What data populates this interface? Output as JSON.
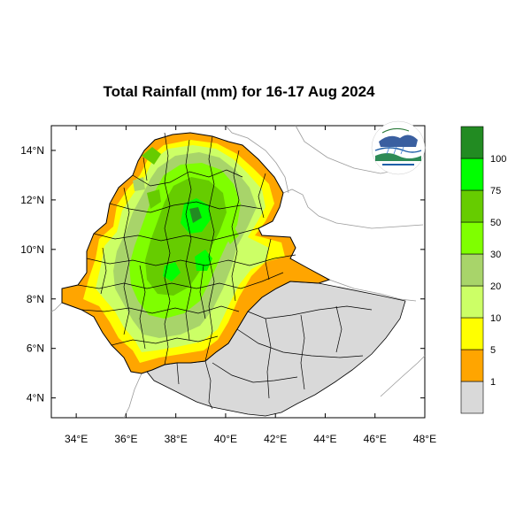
{
  "title": "Total Rainfall (mm) for 16-17 Aug 2024",
  "map": {
    "lon_range": [
      33,
      48
    ],
    "lat_range": [
      3.2,
      15
    ],
    "x_ticks": [
      {
        "value": 34,
        "label": "34°E"
      },
      {
        "value": 36,
        "label": "36°E"
      },
      {
        "value": 38,
        "label": "38°E"
      },
      {
        "value": 40,
        "label": "40°E"
      },
      {
        "value": 42,
        "label": "42°E"
      },
      {
        "value": 44,
        "label": "44°E"
      },
      {
        "value": 46,
        "label": "46°E"
      },
      {
        "value": 48,
        "label": "48°E"
      }
    ],
    "y_ticks": [
      {
        "value": 4,
        "label": "4°N"
      },
      {
        "value": 6,
        "label": "6°N"
      },
      {
        "value": 8,
        "label": "8°N"
      },
      {
        "value": 10,
        "label": "10°N"
      },
      {
        "value": 12,
        "label": "12°N"
      },
      {
        "value": 14,
        "label": "14°N"
      }
    ]
  },
  "colorbar": {
    "colors": [
      "#d9d9d9",
      "#ffa500",
      "#ffff00",
      "#ccff66",
      "#a8d46a",
      "#7fff00",
      "#66cc00",
      "#00ff00",
      "#228b22"
    ],
    "labels": [
      "1",
      "5",
      "10",
      "20",
      "30",
      "50",
      "75",
      "100"
    ]
  },
  "logo": {
    "name": "agency-logo"
  }
}
